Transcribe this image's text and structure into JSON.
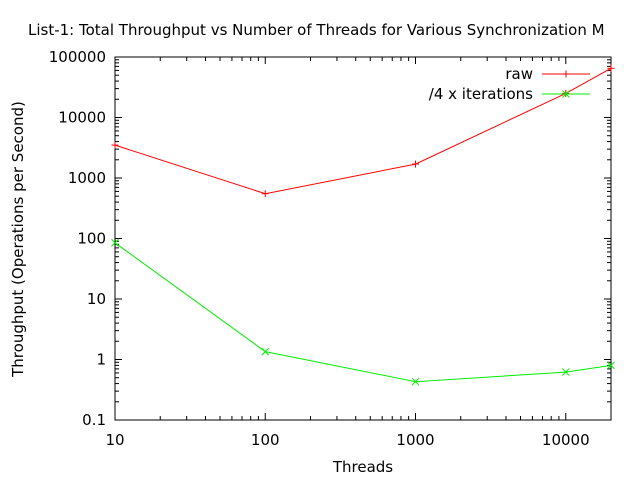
{
  "chart_data": {
    "type": "line",
    "title": "List-1: Total Throughput vs Number of Threads for Various Synchronization M",
    "xlabel": "Threads",
    "ylabel": "Throughput (Operations per Second)",
    "xscale": "log",
    "yscale": "log",
    "xlim": [
      10,
      20000
    ],
    "ylim": [
      0.1,
      100000
    ],
    "xticks": [
      {
        "value": 10,
        "label": "10"
      },
      {
        "value": 100,
        "label": "100"
      },
      {
        "value": 1000,
        "label": "1000"
      },
      {
        "value": 10000,
        "label": "10000"
      }
    ],
    "yticks": [
      {
        "value": 0.1,
        "label": "0.1"
      },
      {
        "value": 1,
        "label": "1"
      },
      {
        "value": 10,
        "label": "10"
      },
      {
        "value": 100,
        "label": "100"
      },
      {
        "value": 1000,
        "label": "1000"
      },
      {
        "value": 10000,
        "label": "10000"
      },
      {
        "value": 100000,
        "label": "100000"
      }
    ],
    "grid": false,
    "legend": "top-right",
    "series": [
      {
        "name": "raw",
        "color": "#ff0000",
        "marker": "+",
        "x": [
          10,
          100,
          1000,
          10000,
          20000
        ],
        "y": [
          3500,
          550,
          1700,
          25000,
          65000
        ]
      },
      {
        "name": "/4 x iterations",
        "color": "#00ee00",
        "marker": "x",
        "x": [
          10,
          100,
          1000,
          10000,
          20000
        ],
        "y": [
          85,
          1.35,
          0.43,
          0.62,
          0.8
        ]
      }
    ]
  }
}
